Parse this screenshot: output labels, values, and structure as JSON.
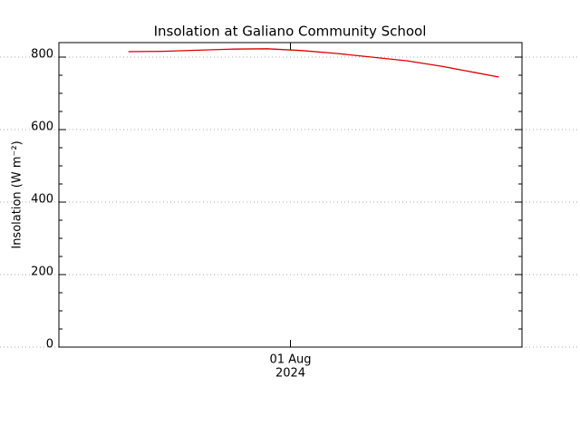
{
  "chart_data": {
    "type": "line",
    "title": "Insolation at Galiano Community School",
    "y_label": "Insolation (W m⁻²)",
    "x": [
      200,
      203,
      206,
      209,
      212,
      215,
      218,
      221,
      224,
      227,
      230,
      232
    ],
    "series": [
      {
        "color": "#dd0000",
        "values": [
          815,
          816,
          819,
          822,
          823,
          818,
          810,
          800,
          790,
          775,
          757,
          745
        ]
      }
    ],
    "xlim": [
      194,
      234
    ],
    "xticks": [
      {
        "value": 214,
        "label": [
          "01 Aug",
          "2024"
        ]
      }
    ],
    "ylim": [
      0,
      840
    ],
    "yticks": [
      0,
      200,
      400,
      600,
      800
    ],
    "yminor": 50,
    "grid": true
  }
}
